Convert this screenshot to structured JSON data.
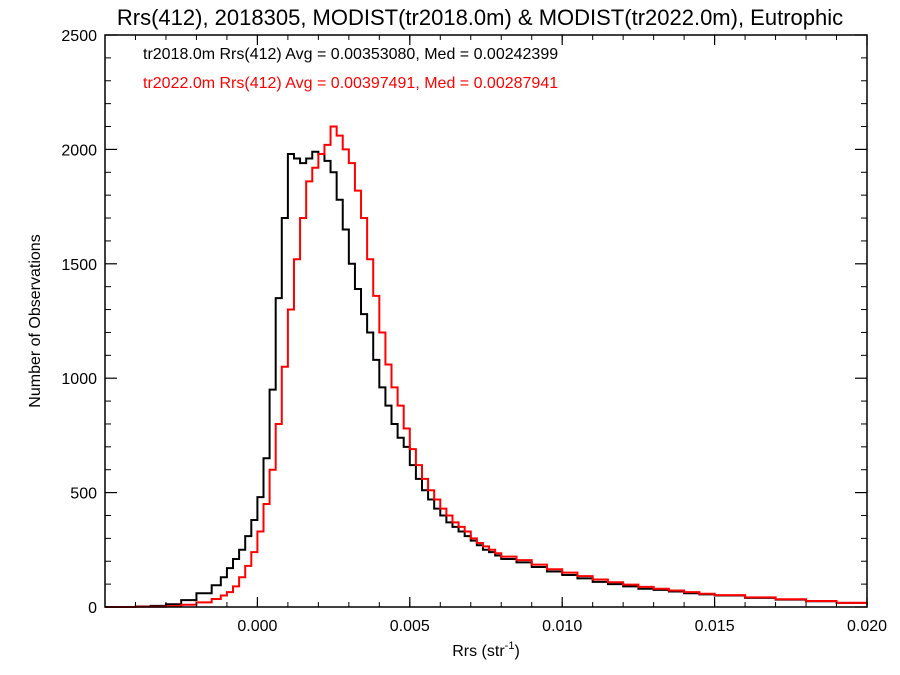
{
  "chart_data": {
    "type": "line",
    "title": "Rrs(412), 2018305, MODIST(tr2018.0m) & MODIST(tr2022.0m), Eutrophic",
    "xlabel": "Rrs (str",
    "xlabel_sup": "-1",
    "ylabel": "Number of Observations",
    "xlim": [
      -0.005,
      0.02
    ],
    "ylim": [
      0,
      2500
    ],
    "xticks": [
      0.0,
      0.005,
      0.01,
      0.015,
      0.02
    ],
    "xtick_labels": [
      "0.000",
      "0.005",
      "0.010",
      "0.015",
      "0.020"
    ],
    "yticks": [
      0,
      500,
      1000,
      1500,
      2000,
      2500
    ],
    "ytick_labels": [
      "0",
      "500",
      "1000",
      "1500",
      "2000",
      "2500"
    ],
    "grid": false,
    "legend_position": "top-left",
    "step_plot": true,
    "series": [
      {
        "name": "tr2018.0m Rrs(412) Avg = 0.00353080, Med = 0.00242399",
        "color": "#000000",
        "points": [
          [
            -0.005,
            0
          ],
          [
            -0.004,
            2
          ],
          [
            -0.0035,
            5
          ],
          [
            -0.003,
            12
          ],
          [
            -0.0025,
            30
          ],
          [
            -0.002,
            60
          ],
          [
            -0.0015,
            95
          ],
          [
            -0.0012,
            130
          ],
          [
            -0.001,
            170
          ],
          [
            -0.0008,
            210
          ],
          [
            -0.0006,
            250
          ],
          [
            -0.0004,
            310
          ],
          [
            -0.0002,
            380
          ],
          [
            0.0,
            480
          ],
          [
            0.0002,
            650
          ],
          [
            0.0004,
            950
          ],
          [
            0.0006,
            1350
          ],
          [
            0.0008,
            1700
          ],
          [
            0.001,
            1980
          ],
          [
            0.0012,
            1960
          ],
          [
            0.0014,
            1940
          ],
          [
            0.0016,
            1960
          ],
          [
            0.0018,
            1990
          ],
          [
            0.002,
            1980
          ],
          [
            0.0022,
            1950
          ],
          [
            0.0024,
            1900
          ],
          [
            0.0026,
            1780
          ],
          [
            0.0028,
            1650
          ],
          [
            0.003,
            1500
          ],
          [
            0.0032,
            1390
          ],
          [
            0.0034,
            1280
          ],
          [
            0.0036,
            1200
          ],
          [
            0.0038,
            1080
          ],
          [
            0.004,
            960
          ],
          [
            0.0042,
            880
          ],
          [
            0.0044,
            800
          ],
          [
            0.0046,
            740
          ],
          [
            0.0048,
            700
          ],
          [
            0.005,
            620
          ],
          [
            0.0052,
            560
          ],
          [
            0.0054,
            510
          ],
          [
            0.0056,
            470
          ],
          [
            0.0058,
            430
          ],
          [
            0.006,
            400
          ],
          [
            0.0062,
            370
          ],
          [
            0.0064,
            350
          ],
          [
            0.0066,
            330
          ],
          [
            0.0068,
            310
          ],
          [
            0.007,
            290
          ],
          [
            0.0072,
            270
          ],
          [
            0.0074,
            250
          ],
          [
            0.0076,
            240
          ],
          [
            0.0078,
            225
          ],
          [
            0.008,
            210
          ],
          [
            0.0085,
            195
          ],
          [
            0.009,
            175
          ],
          [
            0.0095,
            155
          ],
          [
            0.01,
            140
          ],
          [
            0.0105,
            125
          ],
          [
            0.011,
            110
          ],
          [
            0.0115,
            100
          ],
          [
            0.012,
            90
          ],
          [
            0.0125,
            80
          ],
          [
            0.013,
            75
          ],
          [
            0.0135,
            68
          ],
          [
            0.014,
            60
          ],
          [
            0.0145,
            55
          ],
          [
            0.015,
            50
          ],
          [
            0.016,
            40
          ],
          [
            0.017,
            32
          ],
          [
            0.018,
            25
          ],
          [
            0.019,
            18
          ],
          [
            0.02,
            12
          ]
        ]
      },
      {
        "name": "tr2022.0m Rrs(412) Avg = 0.00397491, Med = 0.00287941",
        "color": "#ff0000",
        "points": [
          [
            -0.005,
            0
          ],
          [
            -0.004,
            1
          ],
          [
            -0.003,
            4
          ],
          [
            -0.0025,
            10
          ],
          [
            -0.002,
            20
          ],
          [
            -0.0015,
            35
          ],
          [
            -0.0012,
            50
          ],
          [
            -0.001,
            65
          ],
          [
            -0.0008,
            90
          ],
          [
            -0.0006,
            130
          ],
          [
            -0.0004,
            180
          ],
          [
            -0.0002,
            240
          ],
          [
            0.0,
            330
          ],
          [
            0.0002,
            450
          ],
          [
            0.0004,
            600
          ],
          [
            0.0006,
            800
          ],
          [
            0.0008,
            1050
          ],
          [
            0.001,
            1300
          ],
          [
            0.0012,
            1520
          ],
          [
            0.0014,
            1700
          ],
          [
            0.0016,
            1860
          ],
          [
            0.0018,
            1920
          ],
          [
            0.002,
            1980
          ],
          [
            0.0022,
            2020
          ],
          [
            0.0024,
            2100
          ],
          [
            0.0026,
            2060
          ],
          [
            0.0028,
            2000
          ],
          [
            0.003,
            1940
          ],
          [
            0.0032,
            1820
          ],
          [
            0.0034,
            1700
          ],
          [
            0.0036,
            1520
          ],
          [
            0.0038,
            1360
          ],
          [
            0.004,
            1200
          ],
          [
            0.0042,
            1060
          ],
          [
            0.0044,
            960
          ],
          [
            0.0046,
            880
          ],
          [
            0.0048,
            780
          ],
          [
            0.005,
            690
          ],
          [
            0.0052,
            620
          ],
          [
            0.0054,
            560
          ],
          [
            0.0056,
            510
          ],
          [
            0.0058,
            470
          ],
          [
            0.006,
            430
          ],
          [
            0.0062,
            400
          ],
          [
            0.0064,
            370
          ],
          [
            0.0066,
            350
          ],
          [
            0.0068,
            330
          ],
          [
            0.007,
            300
          ],
          [
            0.0072,
            280
          ],
          [
            0.0074,
            265
          ],
          [
            0.0076,
            250
          ],
          [
            0.0078,
            235
          ],
          [
            0.008,
            220
          ],
          [
            0.0085,
            205
          ],
          [
            0.009,
            185
          ],
          [
            0.0095,
            165
          ],
          [
            0.01,
            150
          ],
          [
            0.0105,
            135
          ],
          [
            0.011,
            120
          ],
          [
            0.0115,
            108
          ],
          [
            0.012,
            98
          ],
          [
            0.0125,
            88
          ],
          [
            0.013,
            80
          ],
          [
            0.0135,
            72
          ],
          [
            0.014,
            65
          ],
          [
            0.0145,
            58
          ],
          [
            0.015,
            52
          ],
          [
            0.016,
            42
          ],
          [
            0.017,
            34
          ],
          [
            0.018,
            26
          ],
          [
            0.019,
            18
          ],
          [
            0.02,
            12
          ]
        ]
      }
    ]
  }
}
